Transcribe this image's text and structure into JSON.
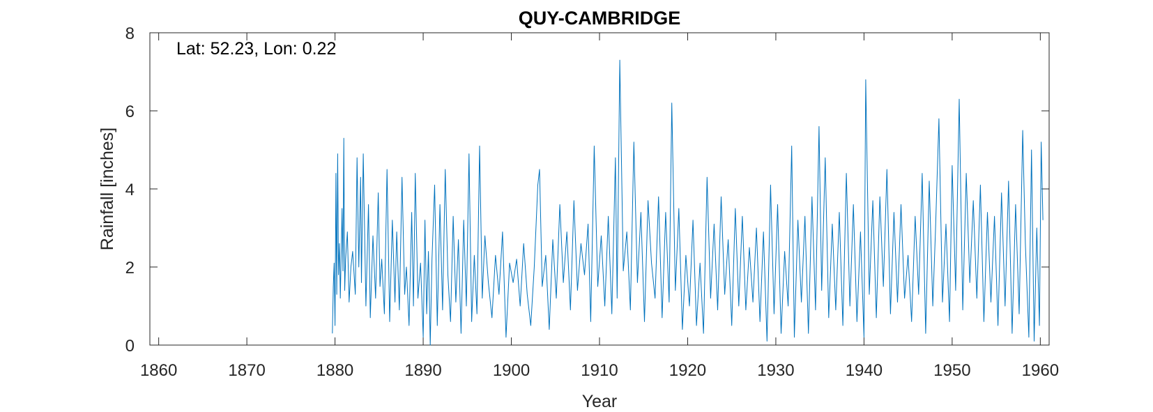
{
  "chart_data": {
    "type": "line",
    "title": "QUY-CAMBRIDGE",
    "xlabel": "Year",
    "ylabel": "Rainfall [inches]",
    "annotation": "Lat: 52.23, Lon: 0.22",
    "xlim": [
      1859,
      1961
    ],
    "ylim": [
      0,
      8
    ],
    "xticks": [
      1860,
      1870,
      1880,
      1890,
      1900,
      1910,
      1920,
      1930,
      1940,
      1950,
      1960
    ],
    "yticks": [
      0,
      2,
      4,
      6,
      8
    ],
    "grid": false,
    "line_color": "#0072BD",
    "series": [
      {
        "x": [
          1879.7,
          1879.8,
          1879.9,
          1880.0,
          1880.1,
          1880.2,
          1880.3,
          1880.4,
          1880.5,
          1880.6,
          1880.8,
          1880.9,
          1881.0,
          1881.1,
          1881.2,
          1881.4,
          1881.6,
          1881.8,
          1882.0,
          1882.3,
          1882.5,
          1882.7,
          1882.9,
          1883.0,
          1883.2,
          1883.5,
          1883.8,
          1884.0,
          1884.3,
          1884.6,
          1884.9,
          1885.1,
          1885.3,
          1885.6,
          1885.9,
          1886.2,
          1886.5,
          1886.8,
          1887.0,
          1887.3,
          1887.6,
          1887.9,
          1888.1,
          1888.4,
          1888.7,
          1888.9,
          1889.1,
          1889.4,
          1889.7,
          1890.0,
          1890.2,
          1890.4,
          1890.6,
          1890.8,
          1891.0,
          1891.3,
          1891.6,
          1891.9,
          1892.2,
          1892.5,
          1892.8,
          1893.1,
          1893.4,
          1893.7,
          1894.0,
          1894.3,
          1894.6,
          1894.9,
          1895.2,
          1895.5,
          1895.8,
          1896.1,
          1896.4,
          1896.7,
          1897.0,
          1897.4,
          1897.8,
          1898.2,
          1898.6,
          1899.0,
          1899.4,
          1899.8,
          1900.2,
          1900.6,
          1901.0,
          1901.4,
          1901.8,
          1902.2,
          1902.6,
          1903.0,
          1903.2,
          1903.5,
          1903.9,
          1904.3,
          1904.7,
          1905.1,
          1905.5,
          1905.9,
          1906.3,
          1906.7,
          1907.1,
          1907.5,
          1907.9,
          1908.3,
          1908.7,
          1909.0,
          1909.4,
          1909.8,
          1910.2,
          1910.6,
          1911.0,
          1911.4,
          1911.8,
          1912.0,
          1912.3,
          1912.7,
          1913.1,
          1913.5,
          1913.9,
          1914.3,
          1914.7,
          1915.1,
          1915.5,
          1915.9,
          1916.3,
          1916.7,
          1917.1,
          1917.5,
          1917.9,
          1918.2,
          1918.6,
          1919.0,
          1919.4,
          1919.8,
          1920.2,
          1920.6,
          1921.0,
          1921.4,
          1921.8,
          1922.2,
          1922.6,
          1923.0,
          1923.4,
          1923.8,
          1924.2,
          1924.6,
          1925.0,
          1925.4,
          1925.8,
          1926.2,
          1926.6,
          1927.0,
          1927.4,
          1927.8,
          1928.2,
          1928.6,
          1929.0,
          1929.4,
          1929.8,
          1930.2,
          1930.6,
          1931.0,
          1931.4,
          1931.8,
          1932.1,
          1932.5,
          1932.9,
          1933.3,
          1933.7,
          1934.1,
          1934.5,
          1934.9,
          1935.2,
          1935.6,
          1936.0,
          1936.4,
          1936.8,
          1937.2,
          1937.6,
          1938.0,
          1938.4,
          1938.8,
          1939.2,
          1939.6,
          1940.0,
          1940.2,
          1940.6,
          1941.0,
          1941.4,
          1941.8,
          1942.2,
          1942.6,
          1943.0,
          1943.4,
          1943.8,
          1944.2,
          1944.6,
          1945.0,
          1945.4,
          1945.8,
          1946.2,
          1946.6,
          1947.0,
          1947.4,
          1947.8,
          1948.1,
          1948.5,
          1948.9,
          1949.3,
          1949.7,
          1950.0,
          1950.4,
          1950.8,
          1951.2,
          1951.6,
          1952.0,
          1952.4,
          1952.8,
          1953.2,
          1953.6,
          1954.0,
          1954.4,
          1954.8,
          1955.2,
          1955.6,
          1956.0,
          1956.4,
          1956.8,
          1957.2,
          1957.6,
          1958.0,
          1958.3,
          1958.7,
          1959.0,
          1959.3,
          1959.6,
          1959.9,
          1960.1,
          1960.3
        ],
        "y": [
          0.3,
          1.5,
          2.1,
          0.5,
          4.4,
          1.3,
          4.9,
          1.8,
          2.6,
          1.2,
          3.5,
          1.9,
          5.3,
          1.4,
          2.2,
          2.9,
          1.1,
          2.0,
          2.4,
          1.3,
          4.8,
          2.0,
          4.3,
          1.6,
          4.9,
          1.0,
          3.6,
          0.7,
          2.8,
          1.2,
          3.9,
          1.5,
          2.2,
          0.8,
          4.5,
          0.6,
          3.2,
          1.1,
          2.9,
          0.9,
          4.3,
          1.3,
          2.0,
          0.5,
          3.4,
          1.0,
          4.4,
          1.2,
          2.1,
          0.2,
          3.2,
          0.8,
          2.4,
          0.0,
          2.2,
          4.1,
          0.5,
          3.6,
          0.9,
          4.5,
          1.8,
          0.6,
          3.3,
          1.1,
          2.7,
          0.3,
          3.2,
          1.0,
          4.9,
          0.6,
          2.3,
          0.8,
          5.1,
          1.2,
          2.8,
          1.6,
          0.7,
          2.3,
          1.3,
          2.9,
          0.2,
          2.1,
          1.6,
          2.2,
          1.0,
          2.6,
          1.3,
          0.5,
          2.0,
          4.1,
          4.5,
          1.5,
          2.3,
          0.4,
          2.7,
          1.2,
          3.6,
          1.6,
          2.9,
          0.9,
          3.7,
          1.4,
          2.6,
          1.8,
          3.1,
          0.6,
          5.1,
          1.5,
          2.8,
          1.0,
          3.3,
          0.8,
          4.8,
          1.2,
          7.3,
          1.9,
          2.9,
          0.9,
          5.2,
          1.6,
          3.4,
          0.6,
          3.7,
          2.1,
          1.2,
          3.8,
          0.7,
          3.4,
          1.1,
          6.2,
          1.4,
          3.5,
          0.4,
          2.3,
          1.0,
          3.2,
          0.5,
          2.1,
          0.3,
          4.3,
          1.2,
          3.1,
          0.9,
          3.8,
          1.3,
          2.7,
          0.5,
          3.5,
          1.0,
          3.3,
          0.9,
          2.5,
          1.1,
          3.0,
          0.6,
          2.9,
          0.1,
          4.1,
          0.8,
          3.6,
          0.3,
          2.4,
          1.0,
          5.1,
          0.2,
          3.2,
          1.1,
          3.3,
          0.3,
          3.8,
          0.9,
          5.6,
          1.4,
          4.8,
          0.7,
          3.1,
          0.9,
          3.4,
          0.5,
          4.4,
          1.0,
          3.6,
          0.6,
          2.9,
          0.2,
          6.8,
          1.3,
          3.7,
          0.7,
          3.8,
          1.5,
          4.5,
          0.8,
          3.4,
          1.1,
          3.6,
          1.2,
          2.3,
          0.6,
          3.3,
          1.3,
          4.4,
          0.3,
          4.2,
          1.0,
          2.9,
          5.8,
          1.1,
          3.1,
          0.6,
          4.6,
          1.4,
          6.3,
          0.9,
          4.4,
          1.6,
          3.7,
          1.2,
          4.1,
          0.6,
          3.4,
          1.1,
          3.3,
          0.5,
          3.9,
          1.0,
          4.2,
          0.3,
          3.6,
          0.8,
          5.5,
          2.6,
          0.2,
          5.0,
          0.1,
          3.0,
          0.5,
          5.2,
          3.2
        ]
      }
    ]
  }
}
